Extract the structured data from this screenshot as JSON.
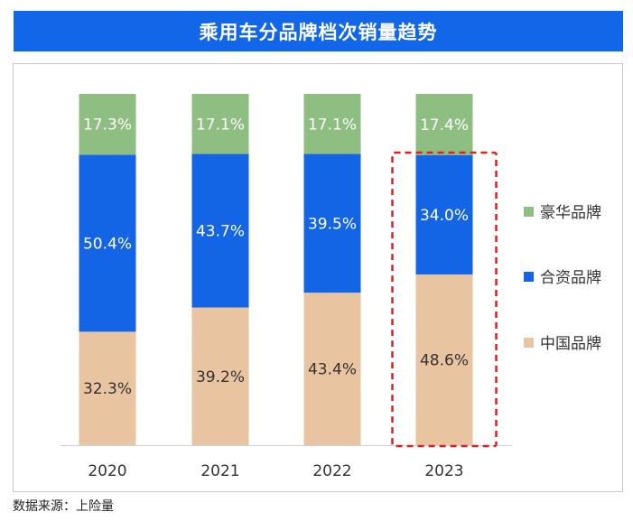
{
  "title": "乘用车分品牌档次销量趋势",
  "source": "数据来源：上险量",
  "chart_data": {
    "type": "bar",
    "stacked": true,
    "categories": [
      "2020",
      "2021",
      "2022",
      "2023"
    ],
    "series": [
      {
        "name": "中国品牌",
        "values": [
          32.3,
          39.2,
          43.4,
          48.6
        ],
        "labels": [
          "32.3%",
          "39.2%",
          "43.4%",
          "48.6%"
        ],
        "color": "#e8c4a0",
        "label_color": "#333333"
      },
      {
        "name": "合资品牌",
        "values": [
          50.4,
          43.7,
          39.5,
          34.0
        ],
        "labels": [
          "50.4%",
          "43.7%",
          "39.5%",
          "34.0%"
        ],
        "color": "#1464e6",
        "label_color": "#ffffff"
      },
      {
        "name": "豪华品牌",
        "values": [
          17.3,
          17.1,
          17.1,
          17.4
        ],
        "labels": [
          "17.3%",
          "17.1%",
          "17.1%",
          "17.4%"
        ],
        "color": "#8fbe82",
        "label_color": "#ffffff"
      }
    ],
    "legend": [
      "豪华品牌",
      "合资品牌",
      "中国品牌"
    ],
    "legend_position": "right",
    "ylim": [
      0,
      100
    ],
    "grid": false,
    "highlight_category": "2023",
    "highlight_color": "#e02020"
  }
}
